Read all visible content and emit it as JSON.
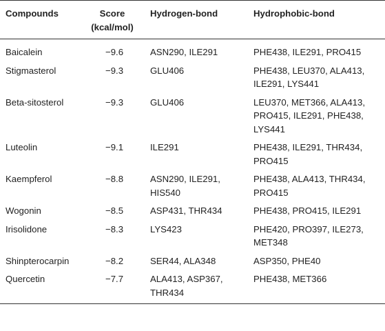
{
  "table": {
    "headers": {
      "compound": "Compounds",
      "score": "Score\n(kcal/mol)",
      "hydrogen": "Hydrogen-bond",
      "hydrophobic": "Hydrophobic-bond"
    },
    "rows": [
      {
        "compound": "Baicalein",
        "score": "−9.6",
        "hydrogen": "ASN290, ILE291",
        "hydrophobic": "PHE438, ILE291, PRO415"
      },
      {
        "compound": "Stigmasterol",
        "score": "−9.3",
        "hydrogen": "GLU406",
        "hydrophobic": "PHE438, LEU370, ALA413,\nILE291, LYS441"
      },
      {
        "compound": "Beta-sitosterol",
        "score": "−9.3",
        "hydrogen": "GLU406",
        "hydrophobic": "LEU370, MET366, ALA413,\nPRO415, ILE291, PHE438,\nLYS441"
      },
      {
        "compound": "Luteolin",
        "score": "−9.1",
        "hydrogen": "ILE291",
        "hydrophobic": "PHE438, ILE291, THR434,\nPRO415"
      },
      {
        "compound": "Kaempferol",
        "score": "−8.8",
        "hydrogen": "ASN290, ILE291,\nHIS540",
        "hydrophobic": "PHE438, ALA413, THR434,\nPRO415"
      },
      {
        "compound": "Wogonin",
        "score": "−8.5",
        "hydrogen": "ASP431, THR434",
        "hydrophobic": "PHE438, PRO415, ILE291"
      },
      {
        "compound": "Irisolidone",
        "score": "−8.3",
        "hydrogen": "LYS423",
        "hydrophobic": "PHE420, PRO397, ILE273,\nMET348"
      },
      {
        "compound": "Shinpterocarpin",
        "score": "−8.2",
        "hydrogen": "SER44, ALA348",
        "hydrophobic": "ASP350, PHE40"
      },
      {
        "compound": "Quercetin",
        "score": "−7.7",
        "hydrogen": "ALA413, ASP367,\nTHR434",
        "hydrophobic": "PHE438, MET366"
      }
    ]
  }
}
